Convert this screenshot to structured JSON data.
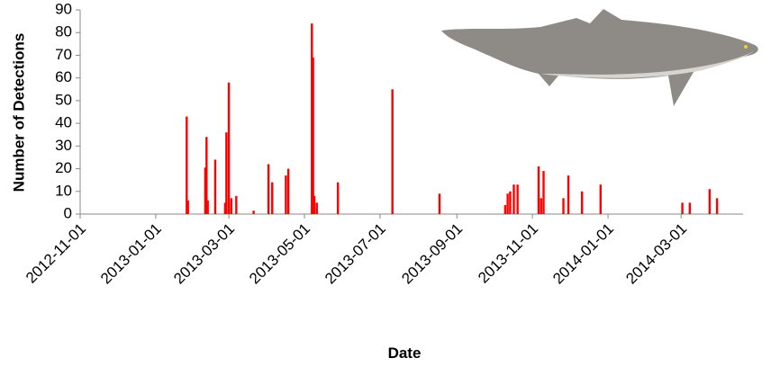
{
  "chart_data": {
    "type": "bar",
    "x_label": "Date",
    "y_label": "Number of Detections",
    "color": "#ff0000",
    "x": [
      "2013-01-26",
      "2013-01-27",
      "2013-02-10",
      "2013-02-11",
      "2013-02-12",
      "2013-02-18",
      "2013-02-26",
      "2013-02-27",
      "2013-03-01",
      "2013-03-03",
      "2013-03-07",
      "2013-03-21",
      "2013-04-02",
      "2013-04-05",
      "2013-04-16",
      "2013-04-18",
      "2013-05-07",
      "2013-05-08",
      "2013-05-09",
      "2013-05-11",
      "2013-05-28",
      "2013-07-11",
      "2013-08-18",
      "2013-10-10",
      "2013-10-12",
      "2013-10-14",
      "2013-10-17",
      "2013-10-20",
      "2013-11-06",
      "2013-11-08",
      "2013-11-10",
      "2013-11-26",
      "2013-11-30",
      "2013-12-11",
      "2013-12-26",
      "2014-03-02",
      "2014-03-08",
      "2014-03-24",
      "2014-03-30"
    ],
    "values": [
      43,
      6,
      20.5,
      34,
      6,
      24,
      5,
      36,
      58,
      7,
      8,
      1.5,
      22,
      14,
      17,
      20,
      84,
      69,
      8,
      5,
      14,
      55,
      9,
      4,
      9,
      10,
      13,
      13,
      21,
      7,
      19,
      7,
      17,
      10,
      13,
      5,
      5,
      11,
      7
    ],
    "xlim": [
      "2012-11-01",
      "2014-04-20"
    ],
    "xticks": [
      "2012-11-01",
      "2013-01-01",
      "2013-03-01",
      "2013-05-01",
      "2013-07-01",
      "2013-09-01",
      "2013-11-01",
      "2014-01-01",
      "2014-03-01"
    ],
    "ylim": [
      0,
      90
    ],
    "yticks": [
      0,
      10,
      20,
      30,
      40,
      50,
      60,
      70,
      80,
      90
    ]
  }
}
